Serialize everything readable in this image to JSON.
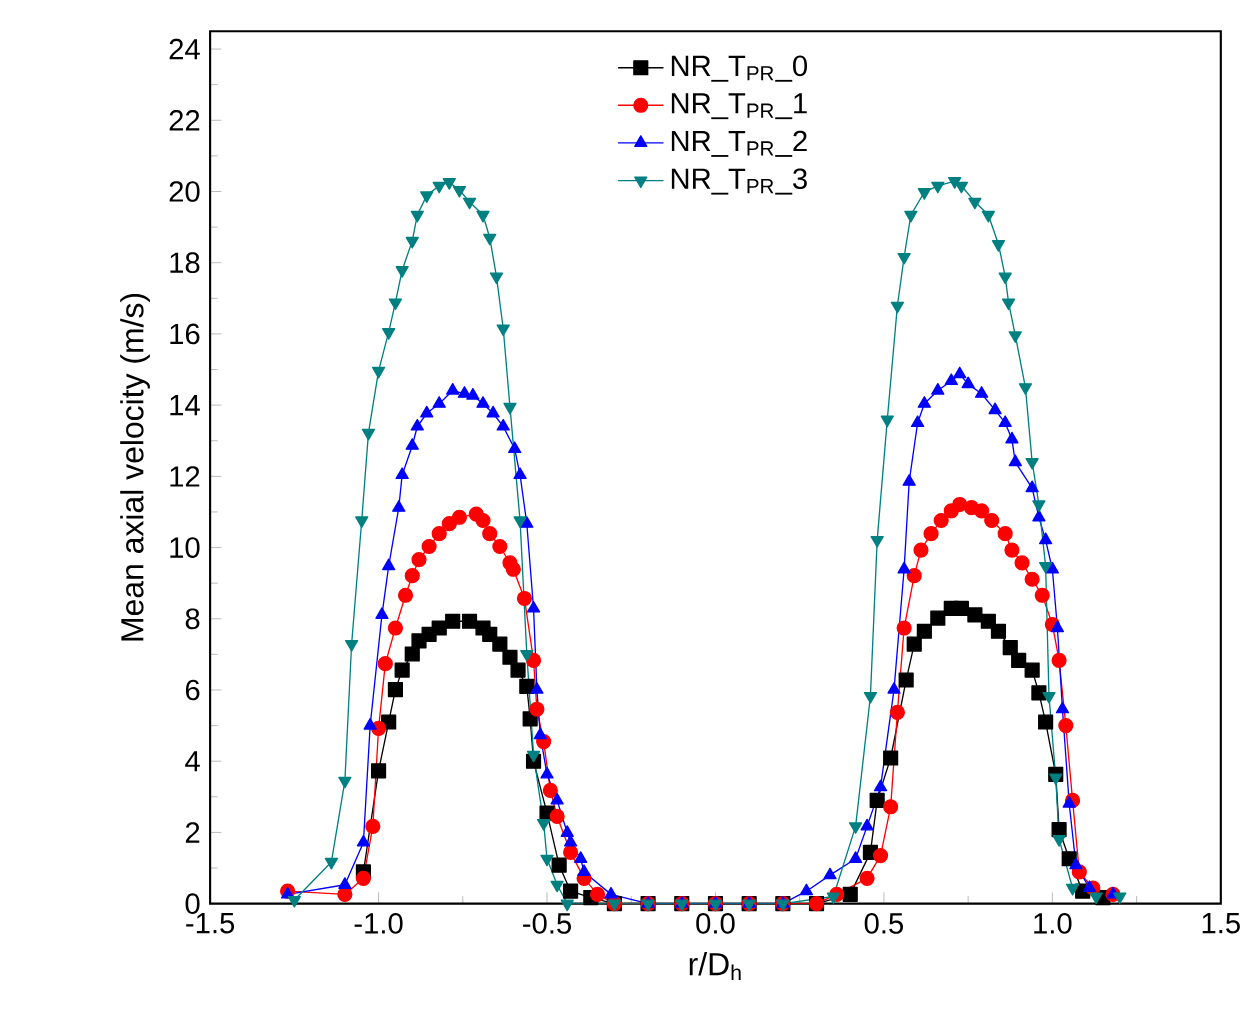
{
  "chart_data": {
    "type": "line",
    "xlabel": "r/D$_{h}$",
    "ylabel": "Mean axial velocity (m/s)",
    "xlim": [
      -1.5,
      1.5
    ],
    "ylim": [
      0,
      24.5
    ],
    "xticks": [
      -1.5,
      {
        "value": -1,
        "label": "-1.0"
      },
      -0.5,
      {
        "value": 0,
        "label": "0.0"
      },
      0.5,
      {
        "value": 1,
        "label": "1.0"
      },
      1.5
    ],
    "yticks": [
      0,
      2,
      4,
      6,
      8,
      10,
      12,
      14,
      16,
      18,
      20,
      22,
      24
    ],
    "legend": "top",
    "grid": false,
    "line_style": "solid",
    "series": [
      {
        "name": "NR_T$_{PR}$_0",
        "color": "#000000",
        "marker": "square",
        "x": [
          -1.045,
          -1.0,
          -0.97,
          -0.95,
          -0.93,
          -0.9,
          -0.88,
          -0.85,
          -0.82,
          -0.78,
          -0.73,
          -0.69,
          -0.67,
          -0.64,
          -0.61,
          -0.586,
          -0.56,
          -0.55,
          -0.54,
          -0.5,
          -0.464,
          -0.43,
          -0.37,
          -0.3,
          -0.2,
          -0.1,
          0,
          0.1,
          0.2,
          0.3,
          0.4,
          0.46,
          0.48,
          0.52,
          0.566,
          0.59,
          0.62,
          0.66,
          0.7,
          0.73,
          0.77,
          0.81,
          0.84,
          0.875,
          0.9,
          0.94,
          0.96,
          0.98,
          1.01,
          1.02,
          1.05,
          1.09,
          1.15
        ],
        "values": [
          0.89,
          3.73,
          5.1,
          6.01,
          6.56,
          7.01,
          7.38,
          7.56,
          7.74,
          7.93,
          7.93,
          7.74,
          7.56,
          7.29,
          6.92,
          6.56,
          6.1,
          5.19,
          4.0,
          2.54,
          1.08,
          0.35,
          0.17,
          0,
          0,
          0,
          0,
          0,
          0,
          0,
          0.26,
          1.44,
          2.9,
          4.09,
          6.28,
          7.29,
          7.65,
          8.02,
          8.29,
          8.29,
          8.11,
          7.93,
          7.65,
          7.19,
          6.83,
          6.56,
          5.92,
          5.1,
          3.63,
          2.08,
          1.26,
          0.35,
          0.17
        ]
      },
      {
        "name": "NR_T$_{PR}$_1",
        "color": "#ff0000",
        "marker": "circle",
        "x": [
          -1.27,
          -1.1,
          -1.045,
          -1.017,
          -1.0,
          -0.98,
          -0.95,
          -0.92,
          -0.9,
          -0.88,
          -0.85,
          -0.82,
          -0.79,
          -0.76,
          -0.71,
          -0.69,
          -0.67,
          -0.64,
          -0.61,
          -0.6,
          -0.567,
          -0.54,
          -0.53,
          -0.51,
          -0.49,
          -0.47,
          -0.43,
          -0.39,
          -0.35,
          -0.3,
          -0.2,
          -0.1,
          0,
          0.1,
          0.2,
          0.3,
          0.36,
          0.45,
          0.49,
          0.52,
          0.54,
          0.56,
          0.59,
          0.61,
          0.64,
          0.67,
          0.7,
          0.725,
          0.76,
          0.79,
          0.82,
          0.86,
          0.88,
          0.91,
          0.94,
          0.97,
          1.0,
          1.02,
          1.04,
          1.06,
          1.08,
          1.12,
          1.18
        ],
        "values": [
          0.35,
          0.26,
          0.71,
          2.17,
          4.92,
          6.74,
          7.74,
          8.66,
          9.21,
          9.66,
          10.03,
          10.39,
          10.67,
          10.85,
          10.94,
          10.76,
          10.39,
          10.03,
          9.57,
          9.39,
          8.57,
          6.83,
          5.46,
          4.55,
          3.18,
          2.45,
          1.44,
          0.71,
          0.26,
          0,
          0,
          0,
          0,
          0,
          0,
          0,
          0.26,
          0.71,
          1.35,
          2.72,
          5.37,
          7.74,
          9.21,
          9.93,
          10.39,
          10.76,
          11.03,
          11.21,
          11.12,
          11.03,
          10.76,
          10.39,
          9.93,
          9.57,
          9.11,
          8.66,
          7.84,
          6.83,
          5.0,
          2.9,
          0.89,
          0.44,
          0.26
        ]
      },
      {
        "name": "NR_T$_{PR}$_2",
        "color": "#0000ff",
        "marker": "triangle",
        "x": [
          -1.27,
          -1.1,
          -1.045,
          -1.025,
          -0.99,
          -0.97,
          -0.94,
          -0.93,
          -0.9,
          -0.885,
          -0.857,
          -0.82,
          -0.78,
          -0.745,
          -0.72,
          -0.69,
          -0.66,
          -0.63,
          -0.596,
          -0.58,
          -0.56,
          -0.54,
          -0.53,
          -0.52,
          -0.5,
          -0.47,
          -0.44,
          -0.43,
          -0.4,
          -0.39,
          -0.31,
          -0.2,
          -0.1,
          0,
          0.1,
          0.2,
          0.27,
          0.34,
          0.416,
          0.45,
          0.49,
          0.53,
          0.56,
          0.575,
          0.6,
          0.62,
          0.66,
          0.7,
          0.725,
          0.75,
          0.79,
          0.83,
          0.86,
          0.88,
          0.89,
          0.94,
          0.96,
          0.98,
          1.0,
          1.015,
          1.03,
          1.05,
          1.07,
          1.11,
          1.18
        ],
        "values": [
          0.26,
          0.53,
          1.72,
          5.0,
          8.11,
          9.48,
          11.12,
          12.04,
          12.86,
          13.4,
          13.77,
          14.04,
          14.41,
          14.32,
          14.27,
          14.04,
          13.77,
          13.4,
          12.77,
          12.04,
          10.67,
          8.29,
          6.01,
          4.73,
          3.63,
          2.9,
          1.99,
          1.72,
          1.26,
          0.89,
          0.26,
          0,
          0,
          0,
          0,
          0,
          0.35,
          0.8,
          1.26,
          2.17,
          3.27,
          6.01,
          9.39,
          11.85,
          13.5,
          14.04,
          14.41,
          14.68,
          14.87,
          14.59,
          14.32,
          13.86,
          13.5,
          13.04,
          12.4,
          11.67,
          10.85,
          10.21,
          9.39,
          7.74,
          5.46,
          2.81,
          1.08,
          0.44,
          0.26
        ]
      },
      {
        "name": "NR_T$_{PR}$_3",
        "color": "#008080",
        "marker": "triangle-down",
        "x": [
          -1.25,
          -1.14,
          -1.1,
          -1.08,
          -1.05,
          -1.03,
          -1.0,
          -0.97,
          -0.95,
          -0.93,
          -0.9,
          -0.885,
          -0.857,
          -0.82,
          -0.79,
          -0.76,
          -0.73,
          -0.69,
          -0.67,
          -0.65,
          -0.63,
          -0.61,
          -0.58,
          -0.56,
          -0.54,
          -0.51,
          -0.5,
          -0.47,
          -0.44,
          -0.3,
          -0.2,
          -0.1,
          0,
          0.1,
          0.2,
          0.35,
          0.416,
          0.46,
          0.48,
          0.51,
          0.54,
          0.56,
          0.58,
          0.62,
          0.66,
          0.71,
          0.73,
          0.77,
          0.81,
          0.84,
          0.86,
          0.87,
          0.89,
          0.92,
          0.94,
          0.96,
          0.98,
          0.99,
          1.01,
          1.02,
          1.06,
          1.13,
          1.2
        ],
        "values": [
          0.1,
          1.17,
          3.45,
          7.29,
          10.76,
          13.22,
          14.96,
          16.05,
          16.88,
          17.79,
          18.61,
          19.34,
          19.89,
          20.16,
          20.26,
          20.04,
          19.71,
          19.34,
          18.7,
          17.61,
          16.15,
          13.95,
          10.76,
          7.01,
          4.18,
          2.26,
          1.26,
          0.53,
          0,
          0,
          0,
          0,
          0,
          0,
          0,
          0.2,
          2.17,
          5.83,
          10.21,
          13.59,
          16.79,
          18.16,
          19.34,
          19.98,
          20.16,
          20.29,
          20.16,
          19.71,
          19.34,
          18.52,
          17.61,
          16.88,
          15.96,
          14.5,
          12.4,
          11.21,
          9.48,
          5.83,
          3.54,
          1.81,
          0.44,
          0.2,
          0.2
        ]
      }
    ]
  }
}
